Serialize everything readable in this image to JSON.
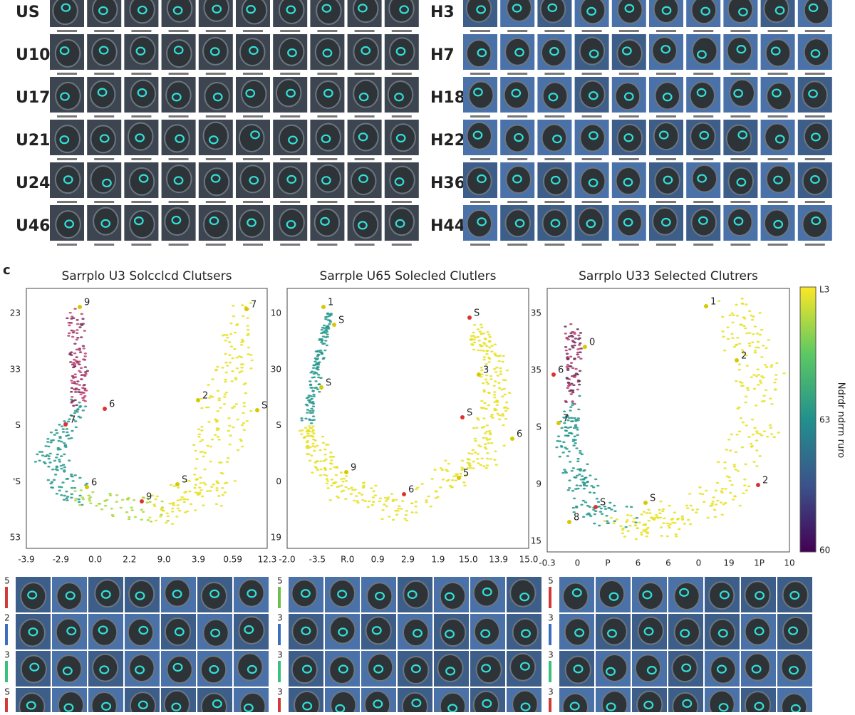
{
  "grid_top": {
    "left_rows": [
      "US",
      "U10",
      "U17",
      "U21",
      "U24",
      "U46"
    ],
    "right_rows": [
      "H3",
      "H7",
      "H18",
      "H22",
      "H36",
      "H44"
    ]
  },
  "panel_c": {
    "label": "c",
    "plots": [
      {
        "title": "Sarrplo U3 Solcclcd Clutsers",
        "yticks": [
          "23",
          "33",
          "S",
          "'S",
          "53"
        ],
        "xticks": [
          "-3.9",
          "-2.9",
          "0.0",
          "2.2",
          "9.0",
          "3.9",
          "0.59",
          "12.3"
        ],
        "clusters": [
          "9",
          "7",
          "6",
          "2",
          "S",
          "7",
          "6",
          "S",
          "9"
        ]
      },
      {
        "title": "Sarrple U65 Solecled Clutlers",
        "yticks": [
          "10",
          "30",
          "S",
          "0",
          "19"
        ],
        "xticks": [
          "-2.0",
          "-3.5",
          "R.0",
          "0.9",
          "2.9",
          "1.9",
          "15.0",
          "13.9",
          "15.0"
        ],
        "clusters": [
          "1",
          "S",
          "S",
          "S",
          "3",
          "S",
          "6",
          "9",
          "6",
          "5"
        ]
      },
      {
        "title": "Sarrplo U33 Selected Clutrers",
        "yticks": [
          "35",
          "35",
          "S",
          "9",
          "15"
        ],
        "xticks": [
          "-0.3",
          "0",
          "P",
          "6",
          "6",
          "0",
          "19",
          "1P",
          "10"
        ],
        "clusters": [
          "1",
          "0",
          "6",
          "2",
          "7",
          "S",
          "S",
          "8",
          "2"
        ]
      }
    ],
    "colorbar": {
      "label": "Ndrdr ndrrn ruro",
      "ticks": [
        "L3",
        "63",
        "60"
      ]
    }
  },
  "grid_bottom": [
    [
      "5",
      "2",
      "3",
      "S"
    ],
    [
      "5",
      "3",
      "3",
      "3"
    ],
    [
      "5",
      "3",
      "3",
      "3"
    ]
  ]
}
